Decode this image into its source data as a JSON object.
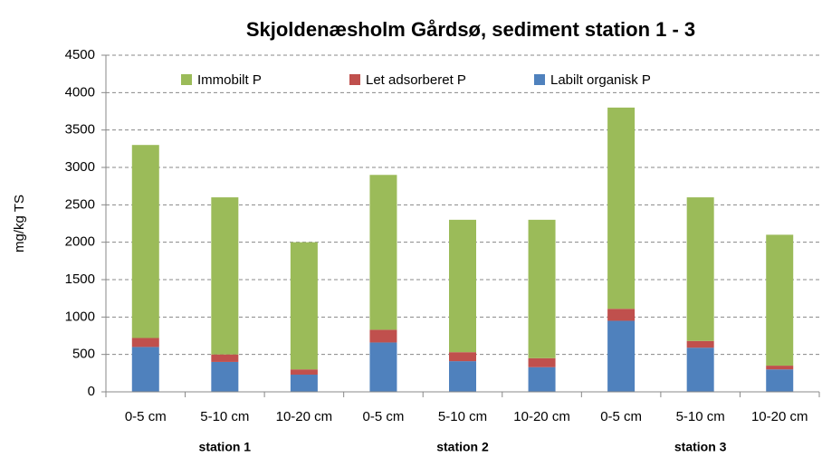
{
  "chart_data": {
    "type": "bar",
    "stacked": true,
    "title": "Skjoldenæsholm  Gårdsø, sediment station 1 - 3",
    "y_label": "mg/kg TS",
    "categories": [
      "0-5 cm",
      "5-10 cm",
      "10-20 cm",
      "0-5 cm",
      "5-10 cm",
      "10-20 cm",
      "0-5 cm",
      "5-10 cm",
      "10-20 cm"
    ],
    "groups": [
      "station 1",
      "station 2",
      "station 3"
    ],
    "series": [
      {
        "name": "Immobilt P",
        "color": "#9bbb59",
        "values": [
          2580,
          2100,
          1700,
          2070,
          1770,
          1850,
          2690,
          1920,
          1750
        ]
      },
      {
        "name": "Let adsorberet P",
        "color": "#c0504d",
        "values": [
          120,
          100,
          70,
          170,
          120,
          120,
          160,
          90,
          50
        ]
      },
      {
        "name": "Labilt organisk P",
        "color": "#4f81bd",
        "values": [
          600,
          400,
          230,
          660,
          410,
          330,
          950,
          590,
          300
        ]
      }
    ],
    "ylim": [
      0,
      4500
    ],
    "yticks": [
      0,
      500,
      1000,
      1500,
      2000,
      2500,
      3000,
      3500,
      4000,
      4500
    ],
    "grid": true,
    "legend": "top"
  }
}
